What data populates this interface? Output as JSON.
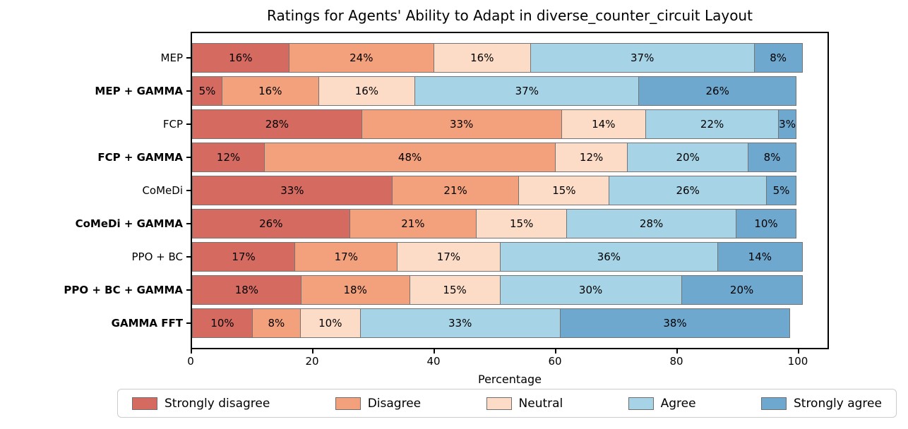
{
  "figure": {
    "title": "Ratings for Agents' Ability to Adapt in diverse_counter_circuit Layout",
    "xlabel": "Percentage"
  },
  "chart_data": {
    "type": "bar",
    "subtype": "horizontal_stacked_likert",
    "title": "Ratings for Agents' Ability to Adapt in diverse_counter_circuit Layout",
    "xlabel": "Percentage",
    "ylabel": "",
    "xlim": [
      0,
      105
    ],
    "xticks": [
      0,
      20,
      40,
      60,
      80,
      100
    ],
    "grid": false,
    "legend_position": "bottom",
    "bar_label_format": "percent",
    "categories": [
      "MEP",
      "MEP + GAMMA",
      "FCP",
      "FCP + GAMMA",
      "CoMeDi",
      "CoMeDi + GAMMA",
      "PPO + BC",
      "PPO + BC + GAMMA",
      "GAMMA FFT"
    ],
    "categories_bold": [
      false,
      true,
      false,
      true,
      false,
      true,
      false,
      true,
      true
    ],
    "series": [
      {
        "name": "Strongly disagree",
        "color": "#d56a61",
        "values": [
          16,
          5,
          28,
          12,
          33,
          26,
          17,
          18,
          10
        ]
      },
      {
        "name": "Disagree",
        "color": "#f2a17c",
        "values": [
          24,
          16,
          33,
          48,
          21,
          21,
          17,
          18,
          8
        ]
      },
      {
        "name": "Neutral",
        "color": "#fcdcc6",
        "values": [
          16,
          16,
          14,
          12,
          15,
          15,
          17,
          15,
          10
        ]
      },
      {
        "name": "Agree",
        "color": "#a6d3e5",
        "values": [
          37,
          37,
          22,
          20,
          26,
          28,
          36,
          30,
          33
        ]
      },
      {
        "name": "Strongly agree",
        "color": "#6fa8cf",
        "values": [
          8,
          26,
          3,
          8,
          5,
          10,
          14,
          20,
          38
        ]
      }
    ],
    "colors": {
      "strongly_disagree": "#d56a61",
      "disagree": "#f2a17c",
      "neutral": "#fcdcc6",
      "agree": "#a6d3e5",
      "strongly_agree": "#6fa8cf",
      "axis": "#000000",
      "segment_edge": "#757575",
      "legend_border": "#cccccc"
    }
  }
}
